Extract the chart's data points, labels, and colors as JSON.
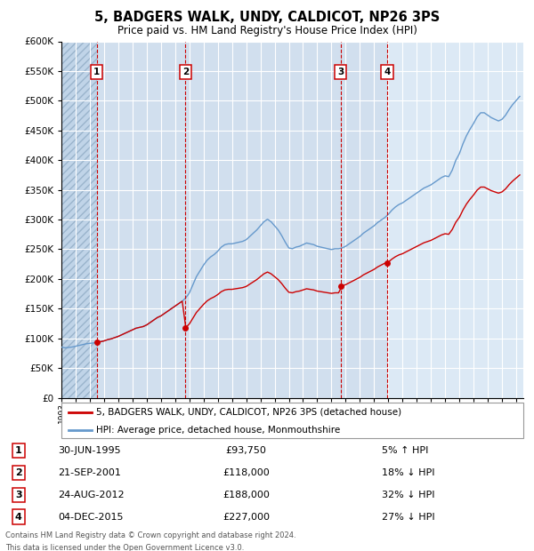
{
  "title": "5, BADGERS WALK, UNDY, CALDICOT, NP26 3PS",
  "subtitle": "Price paid vs. HM Land Registry's House Price Index (HPI)",
  "title_fontsize": 10,
  "subtitle_fontsize": 8.5,
  "transactions": [
    {
      "num": 1,
      "date": "30-JUN-1995",
      "date_val": 1995.5,
      "price": 93750,
      "pct": "5%",
      "dir": "↑"
    },
    {
      "num": 2,
      "date": "21-SEP-2001",
      "date_val": 2001.72,
      "price": 118000,
      "pct": "18%",
      "dir": "↓"
    },
    {
      "num": 3,
      "date": "24-AUG-2012",
      "date_val": 2012.65,
      "price": 188000,
      "pct": "32%",
      "dir": "↓"
    },
    {
      "num": 4,
      "date": "04-DEC-2015",
      "date_val": 2015.92,
      "price": 227000,
      "pct": "27%",
      "dir": "↓"
    }
  ],
  "red_line_label": "5, BADGERS WALK, UNDY, CALDICOT, NP26 3PS (detached house)",
  "blue_line_label": "HPI: Average price, detached house, Monmouthshire",
  "footer1": "Contains HM Land Registry data © Crown copyright and database right 2024.",
  "footer2": "This data is licensed under the Open Government Licence v3.0.",
  "background_color": "#dce9f5",
  "red_color": "#cc0000",
  "blue_color": "#6699cc",
  "vline_color": "#cc0000",
  "ylim": [
    0,
    600000
  ],
  "yticks": [
    0,
    50000,
    100000,
    150000,
    200000,
    250000,
    300000,
    350000,
    400000,
    450000,
    500000,
    550000,
    600000
  ],
  "xlim_start": 1993.0,
  "xlim_end": 2025.5,
  "hpi_data": [
    [
      1993.0,
      62.0
    ],
    [
      1993.25,
      61.0
    ],
    [
      1993.5,
      61.5
    ],
    [
      1993.75,
      62.0
    ],
    [
      1994.0,
      63.0
    ],
    [
      1994.25,
      64.0
    ],
    [
      1994.5,
      65.0
    ],
    [
      1994.75,
      66.0
    ],
    [
      1995.0,
      66.5
    ],
    [
      1995.25,
      67.0
    ],
    [
      1995.5,
      68.0
    ],
    [
      1995.75,
      68.5
    ],
    [
      1996.0,
      69.5
    ],
    [
      1996.25,
      71.0
    ],
    [
      1996.5,
      72.0
    ],
    [
      1996.75,
      73.5
    ],
    [
      1997.0,
      75.0
    ],
    [
      1997.25,
      77.0
    ],
    [
      1997.5,
      79.0
    ],
    [
      1997.75,
      81.0
    ],
    [
      1998.0,
      83.0
    ],
    [
      1998.25,
      85.0
    ],
    [
      1998.5,
      86.0
    ],
    [
      1998.75,
      87.0
    ],
    [
      1999.0,
      89.0
    ],
    [
      1999.25,
      92.0
    ],
    [
      1999.5,
      95.0
    ],
    [
      1999.75,
      98.0
    ],
    [
      2000.0,
      100.0
    ],
    [
      2000.25,
      103.0
    ],
    [
      2000.5,
      106.0
    ],
    [
      2000.75,
      109.0
    ],
    [
      2001.0,
      112.0
    ],
    [
      2001.25,
      115.0
    ],
    [
      2001.5,
      118.0
    ],
    [
      2001.75,
      122.0
    ],
    [
      2002.0,
      128.0
    ],
    [
      2002.25,
      138.0
    ],
    [
      2002.5,
      148.0
    ],
    [
      2002.75,
      155.0
    ],
    [
      2003.0,
      162.0
    ],
    [
      2003.25,
      168.0
    ],
    [
      2003.5,
      172.0
    ],
    [
      2003.75,
      175.0
    ],
    [
      2004.0,
      179.0
    ],
    [
      2004.25,
      184.0
    ],
    [
      2004.5,
      187.0
    ],
    [
      2004.75,
      188.0
    ],
    [
      2005.0,
      188.0
    ],
    [
      2005.25,
      189.0
    ],
    [
      2005.5,
      190.0
    ],
    [
      2005.75,
      191.0
    ],
    [
      2006.0,
      193.0
    ],
    [
      2006.25,
      197.0
    ],
    [
      2006.5,
      201.0
    ],
    [
      2006.75,
      205.0
    ],
    [
      2007.0,
      210.0
    ],
    [
      2007.25,
      215.0
    ],
    [
      2007.5,
      218.0
    ],
    [
      2007.75,
      215.0
    ],
    [
      2008.0,
      210.0
    ],
    [
      2008.25,
      205.0
    ],
    [
      2008.5,
      198.0
    ],
    [
      2008.75,
      190.0
    ],
    [
      2009.0,
      183.0
    ],
    [
      2009.25,
      182.0
    ],
    [
      2009.5,
      184.0
    ],
    [
      2009.75,
      185.0
    ],
    [
      2010.0,
      187.0
    ],
    [
      2010.25,
      189.0
    ],
    [
      2010.5,
      188.0
    ],
    [
      2010.75,
      187.0
    ],
    [
      2011.0,
      185.0
    ],
    [
      2011.25,
      184.0
    ],
    [
      2011.5,
      183.0
    ],
    [
      2011.75,
      182.0
    ],
    [
      2012.0,
      181.0
    ],
    [
      2012.25,
      182.0
    ],
    [
      2012.5,
      182.0
    ],
    [
      2012.75,
      183.0
    ],
    [
      2013.0,
      185.0
    ],
    [
      2013.25,
      188.0
    ],
    [
      2013.5,
      191.0
    ],
    [
      2013.75,
      194.0
    ],
    [
      2014.0,
      197.0
    ],
    [
      2014.25,
      201.0
    ],
    [
      2014.5,
      204.0
    ],
    [
      2014.75,
      207.0
    ],
    [
      2015.0,
      210.0
    ],
    [
      2015.25,
      214.0
    ],
    [
      2015.5,
      217.0
    ],
    [
      2015.75,
      220.0
    ],
    [
      2016.0,
      224.0
    ],
    [
      2016.25,
      229.0
    ],
    [
      2016.5,
      233.0
    ],
    [
      2016.75,
      236.0
    ],
    [
      2017.0,
      238.0
    ],
    [
      2017.25,
      241.0
    ],
    [
      2017.5,
      244.0
    ],
    [
      2017.75,
      247.0
    ],
    [
      2018.0,
      250.0
    ],
    [
      2018.25,
      253.0
    ],
    [
      2018.5,
      256.0
    ],
    [
      2018.75,
      258.0
    ],
    [
      2019.0,
      260.0
    ],
    [
      2019.25,
      263.0
    ],
    [
      2019.5,
      266.0
    ],
    [
      2019.75,
      269.0
    ],
    [
      2020.0,
      271.0
    ],
    [
      2020.25,
      270.0
    ],
    [
      2020.5,
      278.0
    ],
    [
      2020.75,
      290.0
    ],
    [
      2021.0,
      298.0
    ],
    [
      2021.25,
      310.0
    ],
    [
      2021.5,
      320.0
    ],
    [
      2021.75,
      328.0
    ],
    [
      2022.0,
      335.0
    ],
    [
      2022.25,
      343.0
    ],
    [
      2022.5,
      348.0
    ],
    [
      2022.75,
      348.0
    ],
    [
      2023.0,
      345.0
    ],
    [
      2023.25,
      342.0
    ],
    [
      2023.5,
      340.0
    ],
    [
      2023.75,
      338.0
    ],
    [
      2024.0,
      340.0
    ],
    [
      2024.25,
      345.0
    ],
    [
      2024.5,
      352.0
    ],
    [
      2024.75,
      358.0
    ],
    [
      2025.0,
      363.0
    ],
    [
      2025.25,
      368.0
    ]
  ]
}
